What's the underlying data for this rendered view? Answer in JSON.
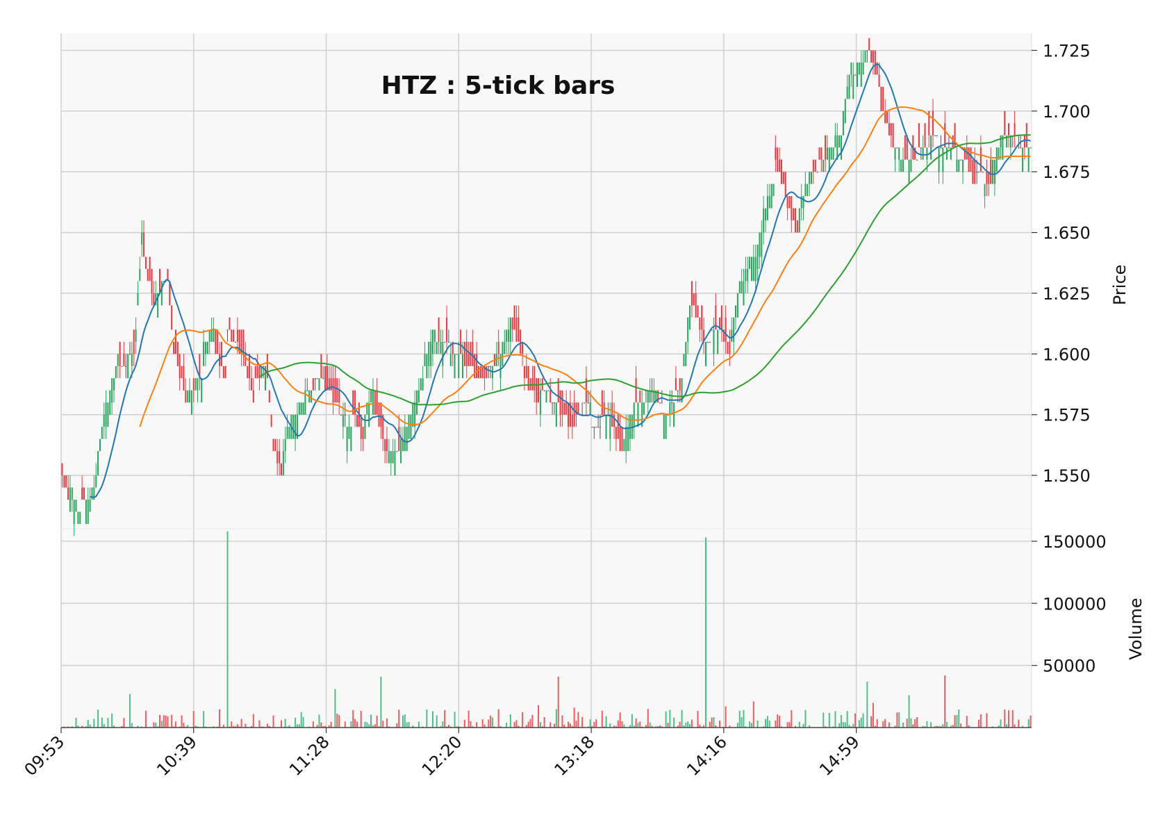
{
  "chart_data": {
    "type": "candlestick",
    "title": "HTZ : 5-tick bars",
    "colors": {
      "up": "#26a65b",
      "down": "#f0353f",
      "doji": "#555555",
      "volume_up": "#4cc08a",
      "volume_down": "#f35a60",
      "ma_fast": "#1f77b4",
      "ma_mid": "#ff7f0e",
      "ma_slow": "#2ca02c",
      "panel_bg": "#f8f8f8",
      "grid": "#d0d0d0"
    },
    "price_panel": {
      "ylabel": "Price",
      "ylim": [
        1.528,
        1.732
      ],
      "yticks": [
        "1.550",
        "1.575",
        "1.600",
        "1.625",
        "1.650",
        "1.675",
        "1.700",
        "1.725"
      ],
      "grid": true,
      "ohlc_series": [
        {
          "seg": [
            1.55,
            1.54
          ],
          "bars": 4,
          "dir": "down"
        },
        {
          "seg": [
            1.545,
            1.535
          ],
          "bars": 6,
          "dir": "up"
        },
        {
          "seg": [
            1.54,
            1.54
          ],
          "bars": 4,
          "dir": "mixed"
        },
        {
          "seg": [
            1.54,
            1.55
          ],
          "bars": 4,
          "dir": "up"
        },
        {
          "seg": [
            1.56,
            1.58
          ],
          "bars": 5,
          "dir": "up"
        },
        {
          "seg": [
            1.58,
            1.6
          ],
          "bars": 6,
          "dir": "up"
        },
        {
          "seg": [
            1.595,
            1.6
          ],
          "bars": 8,
          "dir": "mixed"
        },
        {
          "seg": [
            1.61,
            1.65
          ],
          "bars": 4,
          "dir": "up"
        },
        {
          "seg": [
            1.64,
            1.62
          ],
          "bars": 6,
          "dir": "down"
        },
        {
          "seg": [
            1.625,
            1.63
          ],
          "bars": 6,
          "dir": "mixed"
        },
        {
          "seg": [
            1.63,
            1.6
          ],
          "bars": 4,
          "dir": "down"
        },
        {
          "seg": [
            1.6,
            1.58
          ],
          "bars": 6,
          "dir": "down"
        },
        {
          "seg": [
            1.585,
            1.59
          ],
          "bars": 8,
          "dir": "mixed"
        },
        {
          "seg": [
            1.605,
            1.61
          ],
          "bars": 6,
          "dir": "up"
        },
        {
          "seg": [
            1.6,
            1.59
          ],
          "bars": 6,
          "dir": "down"
        },
        {
          "seg": [
            1.61,
            1.6
          ],
          "bars": 8,
          "dir": "mixed"
        },
        {
          "seg": [
            1.6,
            1.58
          ],
          "bars": 6,
          "dir": "down"
        },
        {
          "seg": [
            1.59,
            1.595
          ],
          "bars": 6,
          "dir": "mixed"
        },
        {
          "seg": [
            1.59,
            1.56
          ],
          "bars": 4,
          "dir": "down"
        },
        {
          "seg": [
            1.56,
            1.55
          ],
          "bars": 4,
          "dir": "down"
        },
        {
          "seg": [
            1.56,
            1.575
          ],
          "bars": 5,
          "dir": "up"
        },
        {
          "seg": [
            1.575,
            1.58
          ],
          "bars": 6,
          "dir": "up"
        },
        {
          "seg": [
            1.585,
            1.59
          ],
          "bars": 10,
          "dir": "mixed"
        },
        {
          "seg": [
            1.585,
            1.58
          ],
          "bars": 8,
          "dir": "down"
        },
        {
          "seg": [
            1.575,
            1.57
          ],
          "bars": 6,
          "dir": "mixed"
        },
        {
          "seg": [
            1.575,
            1.565
          ],
          "bars": 6,
          "dir": "down"
        },
        {
          "seg": [
            1.575,
            1.585
          ],
          "bars": 5,
          "dir": "up"
        },
        {
          "seg": [
            1.575,
            1.565
          ],
          "bars": 5,
          "dir": "down"
        },
        {
          "seg": [
            1.56,
            1.56
          ],
          "bars": 8,
          "dir": "mixed"
        },
        {
          "seg": [
            1.565,
            1.575
          ],
          "bars": 6,
          "dir": "up"
        },
        {
          "seg": [
            1.58,
            1.59
          ],
          "bars": 6,
          "dir": "up"
        },
        {
          "seg": [
            1.6,
            1.61
          ],
          "bars": 6,
          "dir": "up"
        },
        {
          "seg": [
            1.605,
            1.6
          ],
          "bars": 14,
          "dir": "mixed"
        },
        {
          "seg": [
            1.595,
            1.59
          ],
          "bars": 10,
          "dir": "down"
        },
        {
          "seg": [
            1.59,
            1.6
          ],
          "bars": 8,
          "dir": "mixed"
        },
        {
          "seg": [
            1.6,
            1.615
          ],
          "bars": 6,
          "dir": "up"
        },
        {
          "seg": [
            1.61,
            1.6
          ],
          "bars": 6,
          "dir": "down"
        },
        {
          "seg": [
            1.59,
            1.58
          ],
          "bars": 8,
          "dir": "down"
        },
        {
          "seg": [
            1.585,
            1.58
          ],
          "bars": 10,
          "dir": "mixed"
        },
        {
          "seg": [
            1.575,
            1.57
          ],
          "bars": 8,
          "dir": "down"
        },
        {
          "seg": [
            1.575,
            1.58
          ],
          "bars": 8,
          "dir": "mixed"
        },
        {
          "seg": [
            1.57,
            1.575
          ],
          "bars": 10,
          "dir": "mixed"
        },
        {
          "seg": [
            1.57,
            1.56
          ],
          "bars": 6,
          "dir": "down"
        },
        {
          "seg": [
            1.565,
            1.575
          ],
          "bars": 5,
          "dir": "up"
        },
        {
          "seg": [
            1.58,
            1.585
          ],
          "bars": 12,
          "dir": "mixed"
        },
        {
          "seg": [
            1.58,
            1.575
          ],
          "bars": 6,
          "dir": "mixed"
        },
        {
          "seg": [
            1.58,
            1.585
          ],
          "bars": 6,
          "dir": "mixed"
        },
        {
          "seg": [
            1.59,
            1.62
          ],
          "bars": 5,
          "dir": "up"
        },
        {
          "seg": [
            1.62,
            1.61
          ],
          "bars": 6,
          "dir": "down"
        },
        {
          "seg": [
            1.605,
            1.61
          ],
          "bars": 8,
          "dir": "mixed"
        },
        {
          "seg": [
            1.61,
            1.6
          ],
          "bars": 6,
          "dir": "down"
        },
        {
          "seg": [
            1.61,
            1.63
          ],
          "bars": 5,
          "dir": "up"
        },
        {
          "seg": [
            1.63,
            1.64
          ],
          "bars": 6,
          "dir": "up"
        },
        {
          "seg": [
            1.64,
            1.65
          ],
          "bars": 5,
          "dir": "up"
        },
        {
          "seg": [
            1.66,
            1.67
          ],
          "bars": 6,
          "dir": "up"
        },
        {
          "seg": [
            1.68,
            1.665
          ],
          "bars": 6,
          "dir": "down"
        },
        {
          "seg": [
            1.66,
            1.65
          ],
          "bars": 6,
          "dir": "down"
        },
        {
          "seg": [
            1.66,
            1.675
          ],
          "bars": 6,
          "dir": "up"
        },
        {
          "seg": [
            1.675,
            1.68
          ],
          "bars": 8,
          "dir": "mixed"
        },
        {
          "seg": [
            1.685,
            1.69
          ],
          "bars": 8,
          "dir": "up"
        },
        {
          "seg": [
            1.7,
            1.72
          ],
          "bars": 5,
          "dir": "up"
        },
        {
          "seg": [
            1.715,
            1.725
          ],
          "bars": 8,
          "dir": "mixed"
        },
        {
          "seg": [
            1.725,
            1.71
          ],
          "bars": 6,
          "dir": "down"
        },
        {
          "seg": [
            1.7,
            1.69
          ],
          "bars": 6,
          "dir": "down"
        },
        {
          "seg": [
            1.685,
            1.68
          ],
          "bars": 8,
          "dir": "mixed"
        },
        {
          "seg": [
            1.68,
            1.685
          ],
          "bars": 10,
          "dir": "mixed"
        },
        {
          "seg": [
            1.69,
            1.685
          ],
          "bars": 10,
          "dir": "mixed"
        },
        {
          "seg": [
            1.685,
            1.68
          ],
          "bars": 8,
          "dir": "mixed"
        },
        {
          "seg": [
            1.68,
            1.67
          ],
          "bars": 6,
          "dir": "down"
        },
        {
          "seg": [
            1.675,
            1.67
          ],
          "bars": 8,
          "dir": "mixed"
        },
        {
          "seg": [
            1.68,
            1.69
          ],
          "bars": 6,
          "dir": "up"
        },
        {
          "seg": [
            1.69,
            1.685
          ],
          "bars": 14,
          "dir": "mixed"
        }
      ],
      "moving_averages": [
        {
          "color": "#1f77b4",
          "period": 3
        },
        {
          "color": "#ff7f0e",
          "period": 8
        },
        {
          "color": "#2ca02c",
          "period": 20
        }
      ]
    },
    "volume_panel": {
      "ylabel": "Volume",
      "ylim": [
        0,
        160000
      ],
      "yticks": [
        "50000",
        "100000",
        "150000"
      ],
      "grid": true,
      "spikes": [
        {
          "at": 0.07,
          "value": 27000,
          "dir": "up"
        },
        {
          "at": 0.171,
          "value": 158000,
          "dir": "up"
        },
        {
          "at": 0.282,
          "value": 31000,
          "dir": "up"
        },
        {
          "at": 0.329,
          "value": 41000,
          "dir": "up"
        },
        {
          "at": 0.491,
          "value": 18000,
          "dir": "down"
        },
        {
          "at": 0.513,
          "value": 41000,
          "dir": "down"
        },
        {
          "at": 0.528,
          "value": 16000,
          "dir": "down"
        },
        {
          "at": 0.604,
          "value": 15000,
          "dir": "down"
        },
        {
          "at": 0.665,
          "value": 153000,
          "dir": "up"
        },
        {
          "at": 0.685,
          "value": 17000,
          "dir": "down"
        },
        {
          "at": 0.715,
          "value": 21000,
          "dir": "down"
        },
        {
          "at": 0.832,
          "value": 37000,
          "dir": "up"
        },
        {
          "at": 0.838,
          "value": 20000,
          "dir": "down"
        },
        {
          "at": 0.874,
          "value": 26000,
          "dir": "up"
        },
        {
          "at": 0.911,
          "value": 42000,
          "dir": "down"
        }
      ],
      "baseline_max": 14000
    },
    "x_axis": {
      "tick_labels": [
        "09:53",
        "10:39",
        "11:28",
        "12:20",
        "13:18",
        "14:16",
        "14:59"
      ],
      "rotation": 45
    }
  }
}
